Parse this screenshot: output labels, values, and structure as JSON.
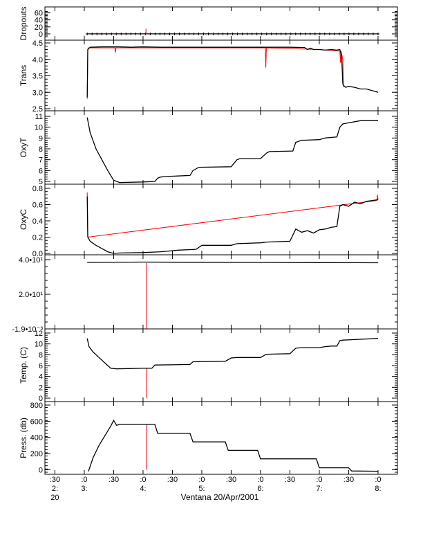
{
  "chart_data": {
    "type": "line",
    "title": "",
    "xlabel": "Ventana 20/Apr/2001",
    "x_tick_labels": [
      {
        "l1": ":30",
        "l2": "2:",
        "l3": "20"
      },
      {
        "l1": ":0",
        "l2": "3:",
        "l3": ""
      },
      {
        "l1": ":30",
        "l2": "",
        "l3": ""
      },
      {
        "l1": ":0",
        "l2": "4:",
        "l3": ""
      },
      {
        "l1": ":30",
        "l2": "",
        "l3": ""
      },
      {
        "l1": ":0",
        "l2": "5:",
        "l3": ""
      },
      {
        "l1": ":30",
        "l2": "",
        "l3": ""
      },
      {
        "l1": ":0",
        "l2": "6:",
        "l3": ""
      },
      {
        "l1": ":30",
        "l2": "",
        "l3": ""
      },
      {
        "l1": ":0",
        "l2": "7:",
        "l3": ""
      },
      {
        "l1": ":30",
        "l2": "",
        "l3": ""
      },
      {
        "l1": ":0",
        "l2": "8:",
        "l3": ""
      }
    ],
    "x_range_hours": [
      2.33,
      8.33
    ],
    "colors": {
      "raw": "#ff0000",
      "smoothed": "#000000"
    },
    "panels": [
      {
        "id": "dropouts",
        "ylabel": "Dropouts",
        "ylim": [
          -8,
          65
        ],
        "tick_labels": [
          {
            "v": 60,
            "label": "60"
          },
          {
            "v": 40,
            "label": "40"
          },
          {
            "v": 20,
            "label": "20"
          },
          {
            "v": 0,
            "label": "0"
          }
        ],
        "series": [
          {
            "color": "#000000",
            "marker": "plus",
            "x": [
              3.05,
              8.0
            ],
            "y": [
              0,
              0
            ]
          },
          {
            "color": "#ff0000",
            "x": [
              4.05,
              4.05
            ],
            "y": [
              0,
              15
            ]
          }
        ]
      },
      {
        "id": "trans",
        "ylabel": "Trans",
        "ylim": [
          2.5,
          4.5
        ],
        "tick_labels": [
          {
            "v": 4.5,
            "label": "4.5"
          },
          {
            "v": 4.0,
            "label": "4.0"
          },
          {
            "v": 3.5,
            "label": "3.5"
          },
          {
            "v": 3.0,
            "label": "3.0"
          },
          {
            "v": 2.5,
            "label": "2.5"
          }
        ],
        "series": [
          {
            "color": "#ff0000",
            "x": [
              3.05,
              3.06,
              3.07,
              3.52,
              3.53,
              3.54,
              6.08,
              6.09,
              6.1,
              7.0,
              7.35,
              7.36,
              7.37,
              7.4,
              7.41,
              7.42
            ],
            "y": [
              2.8,
              4.3,
              4.35,
              4.35,
              4.2,
              4.35,
              4.35,
              3.75,
              4.35,
              4.3,
              4.25,
              3.9,
              4.25,
              4.0,
              3.2,
              3.15
            ]
          },
          {
            "color": "#000000",
            "x": [
              3.05,
              3.06,
              3.1,
              3.3,
              3.6,
              3.8,
              4.0,
              4.3,
              4.6,
              5.0,
              5.5,
              6.0,
              6.5,
              6.75,
              6.8,
              6.85,
              6.9,
              7.0,
              7.1,
              7.2,
              7.3,
              7.35,
              7.38,
              7.4,
              7.42,
              7.45,
              7.5,
              7.6,
              7.7,
              7.8,
              7.9,
              8.0
            ],
            "y": [
              2.85,
              4.3,
              4.37,
              4.38,
              4.38,
              4.37,
              4.38,
              4.37,
              4.37,
              4.37,
              4.37,
              4.37,
              4.37,
              4.36,
              4.3,
              4.34,
              4.3,
              4.3,
              4.28,
              4.3,
              4.28,
              4.3,
              4.1,
              3.25,
              3.2,
              3.15,
              3.18,
              3.15,
              3.1,
              3.1,
              3.05,
              3.0
            ]
          }
        ]
      },
      {
        "id": "oxyt",
        "ylabel": "OxyT",
        "ylim": [
          5,
          11
        ],
        "tick_labels": [
          {
            "v": 11,
            "label": "11"
          },
          {
            "v": 10,
            "label": "10"
          },
          {
            "v": 9,
            "label": "9"
          },
          {
            "v": 8,
            "label": "8"
          },
          {
            "v": 7,
            "label": "7"
          },
          {
            "v": 6,
            "label": "6"
          },
          {
            "v": 5,
            "label": "5"
          }
        ],
        "series": [
          {
            "color": "#000000",
            "x": [
              3.05,
              3.1,
              3.2,
              3.3,
              3.4,
              3.5,
              3.6,
              4.0,
              4.2,
              4.25,
              4.3,
              4.4,
              4.8,
              4.85,
              4.95,
              5.5,
              5.6,
              5.65,
              6.0,
              6.1,
              6.15,
              6.55,
              6.6,
              6.7,
              6.75,
              7.0,
              7.1,
              7.2,
              7.3,
              7.35,
              7.4,
              7.5,
              7.6,
              7.7,
              8.0
            ],
            "y": [
              10.9,
              9.5,
              8.0,
              7.0,
              6.0,
              5.1,
              4.9,
              4.95,
              5.0,
              5.3,
              5.4,
              5.45,
              5.55,
              6.0,
              6.3,
              6.35,
              7.0,
              7.1,
              7.1,
              7.6,
              7.75,
              7.8,
              8.6,
              8.8,
              8.8,
              8.85,
              9.0,
              9.05,
              9.1,
              10.0,
              10.3,
              10.4,
              10.5,
              10.6,
              10.6
            ]
          }
        ]
      },
      {
        "id": "oxyc",
        "ylabel": "OxyC",
        "ylim": [
          0,
          0.8
        ],
        "tick_labels": [
          {
            "v": 0.8,
            "label": "0.8"
          },
          {
            "v": 0.6,
            "label": "0.6"
          },
          {
            "v": 0.4,
            "label": "0.4"
          },
          {
            "v": 0.2,
            "label": "0.2"
          },
          {
            "v": 0.0,
            "label": "0.0"
          }
        ],
        "series": [
          {
            "color": "#ff0000",
            "x": [
              3.05,
              3.06,
              7.98,
              7.99,
              8.0
            ],
            "y": [
              0.75,
              0.2,
              0.65,
              0.72,
              0.66
            ]
          },
          {
            "color": "#000000",
            "x": [
              3.05,
              3.06,
              3.1,
              3.2,
              3.3,
              3.4,
              3.5,
              3.6,
              4.0,
              4.3,
              4.6,
              4.9,
              5.0,
              5.5,
              5.6,
              6.0,
              6.1,
              6.5,
              6.6,
              6.7,
              6.8,
              6.9,
              7.0,
              7.1,
              7.2,
              7.3,
              7.35,
              7.4,
              7.5,
              7.6,
              7.7,
              7.8,
              7.9,
              8.0
            ],
            "y": [
              0.7,
              0.2,
              0.15,
              0.1,
              0.06,
              0.02,
              0.0,
              0.005,
              0.01,
              0.02,
              0.04,
              0.05,
              0.1,
              0.1,
              0.12,
              0.13,
              0.14,
              0.15,
              0.3,
              0.26,
              0.28,
              0.25,
              0.29,
              0.3,
              0.32,
              0.33,
              0.58,
              0.6,
              0.58,
              0.63,
              0.61,
              0.64,
              0.65,
              0.66
            ]
          }
        ]
      },
      {
        "id": "unnamed",
        "ylabel": "",
        "ylim": [
          0,
          40
        ],
        "tick_labels": [
          {
            "v": 40,
            "label": "4.0•10¹"
          },
          {
            "v": 20,
            "label": "2.0•10¹"
          },
          {
            "v": 0,
            "label": "-1.9•10⁻³"
          }
        ],
        "series": [
          {
            "color": "#ff0000",
            "x": [
              4.06,
              4.06
            ],
            "y": [
              38,
              0
            ]
          },
          {
            "color": "#000000",
            "x": [
              3.05,
              4.0,
              5.0,
              6.0,
              7.0,
              8.0
            ],
            "y": [
              38.4,
              38.6,
              38.5,
              38.4,
              38.3,
              38.2
            ]
          }
        ]
      },
      {
        "id": "temp",
        "ylabel": "Temp. (C)",
        "ylim": [
          0,
          12
        ],
        "tick_labels": [
          {
            "v": 12,
            "label": "12"
          },
          {
            "v": 10,
            "label": "10"
          },
          {
            "v": 8,
            "label": "8"
          },
          {
            "v": 6,
            "label": "6"
          },
          {
            "v": 4,
            "label": "4"
          },
          {
            "v": 2,
            "label": "2"
          },
          {
            "v": 0,
            "label": "0"
          }
        ],
        "series": [
          {
            "color": "#ff0000",
            "x": [
              4.06,
              4.06
            ],
            "y": [
              5.5,
              0
            ]
          },
          {
            "color": "#000000",
            "x": [
              3.05,
              3.08,
              3.15,
              3.25,
              3.35,
              3.45,
              3.55,
              4.0,
              4.15,
              4.2,
              4.8,
              4.85,
              5.4,
              5.5,
              5.6,
              6.0,
              6.1,
              6.5,
              6.6,
              6.7,
              7.0,
              7.1,
              7.2,
              7.3,
              7.35,
              7.4,
              7.6,
              8.0
            ],
            "y": [
              11.0,
              9.5,
              8.5,
              7.5,
              6.5,
              5.5,
              5.4,
              5.5,
              5.5,
              6.1,
              6.2,
              6.7,
              6.8,
              7.4,
              7.5,
              7.5,
              8.1,
              8.2,
              9.2,
              9.3,
              9.3,
              9.5,
              9.6,
              9.6,
              10.6,
              10.7,
              10.8,
              11.0
            ]
          }
        ]
      },
      {
        "id": "press",
        "ylabel": "Press. (db)",
        "ylim": [
          -30,
          800
        ],
        "tick_labels": [
          {
            "v": 800,
            "label": "800"
          },
          {
            "v": 600,
            "label": "600"
          },
          {
            "v": 400,
            "label": "400"
          },
          {
            "v": 200,
            "label": "200"
          },
          {
            "v": 0,
            "label": "0"
          }
        ],
        "series": [
          {
            "color": "#ff0000",
            "x": [
              4.06,
              4.06
            ],
            "y": [
              560,
              0
            ]
          },
          {
            "color": "#000000",
            "x": [
              3.07,
              3.15,
              3.25,
              3.35,
              3.45,
              3.5,
              3.55,
              3.6,
              4.0,
              4.2,
              4.25,
              4.8,
              4.85,
              5.4,
              5.45,
              5.95,
              6.0,
              6.95,
              7.0,
              7.5,
              7.55,
              8.0
            ],
            "y": [
              -20,
              150,
              300,
              420,
              540,
              610,
              550,
              560,
              560,
              560,
              450,
              450,
              345,
              345,
              240,
              240,
              135,
              135,
              25,
              25,
              -15,
              -18
            ]
          }
        ]
      }
    ]
  }
}
